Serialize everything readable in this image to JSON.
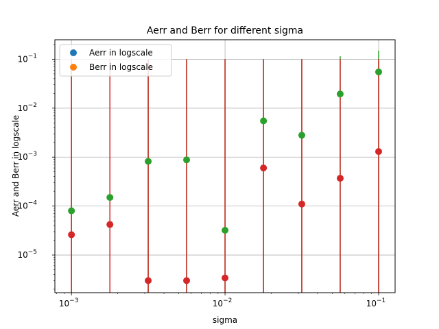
{
  "chart_data": {
    "type": "scatter",
    "title": "Aerr and Berr for different sigma",
    "xlabel": "sigma",
    "ylabel": "Aerr and Berr in logscale",
    "xscale": "log",
    "yscale": "log",
    "xlim": [
      0.00078,
      0.128
    ],
    "ylim": [
      1.7e-06,
      0.25
    ],
    "grid": true,
    "legend_position": "top-left",
    "x_ticks": [
      {
        "value": 0.001,
        "base": "10",
        "exp": "−3"
      },
      {
        "value": 0.01,
        "base": "10",
        "exp": "−2"
      },
      {
        "value": 0.1,
        "base": "10",
        "exp": "−1"
      }
    ],
    "y_ticks": [
      {
        "value": 1e-05,
        "base": "10",
        "exp": "−5"
      },
      {
        "value": 0.0001,
        "base": "10",
        "exp": "−4"
      },
      {
        "value": 0.001,
        "base": "10",
        "exp": "−3"
      },
      {
        "value": 0.01,
        "base": "10",
        "exp": "−2"
      },
      {
        "value": 0.1,
        "base": "10",
        "exp": "−1"
      }
    ],
    "x": [
      0.001,
      0.00178,
      0.00316,
      0.00562,
      0.01,
      0.0178,
      0.0316,
      0.0562,
      0.1
    ],
    "legend": [
      {
        "name": "Aerr in logscale",
        "color": "#1f77b4"
      },
      {
        "name": "Berr in logscale",
        "color": "#ff7f0e"
      }
    ],
    "plotted_series": [
      {
        "color": "#2ca02c",
        "values": [
          8e-05,
          0.00015,
          0.00082,
          0.00088,
          3.2e-05,
          0.0055,
          0.0028,
          0.0195,
          0.055
        ],
        "errorbar_upper": [
          0.1,
          0.1,
          0.1,
          0.1,
          0.1,
          0.1,
          0.1,
          0.115,
          0.15
        ]
      },
      {
        "color": "#d62728",
        "values": [
          2.6e-05,
          4.2e-05,
          3e-06,
          3e-06,
          3.4e-06,
          0.0006,
          0.00011,
          0.00037,
          0.0013
        ],
        "errorbar_upper": [
          0.1,
          0.1,
          0.1,
          0.1,
          0.1,
          0.1,
          0.1,
          0.1,
          0.1
        ]
      }
    ]
  }
}
